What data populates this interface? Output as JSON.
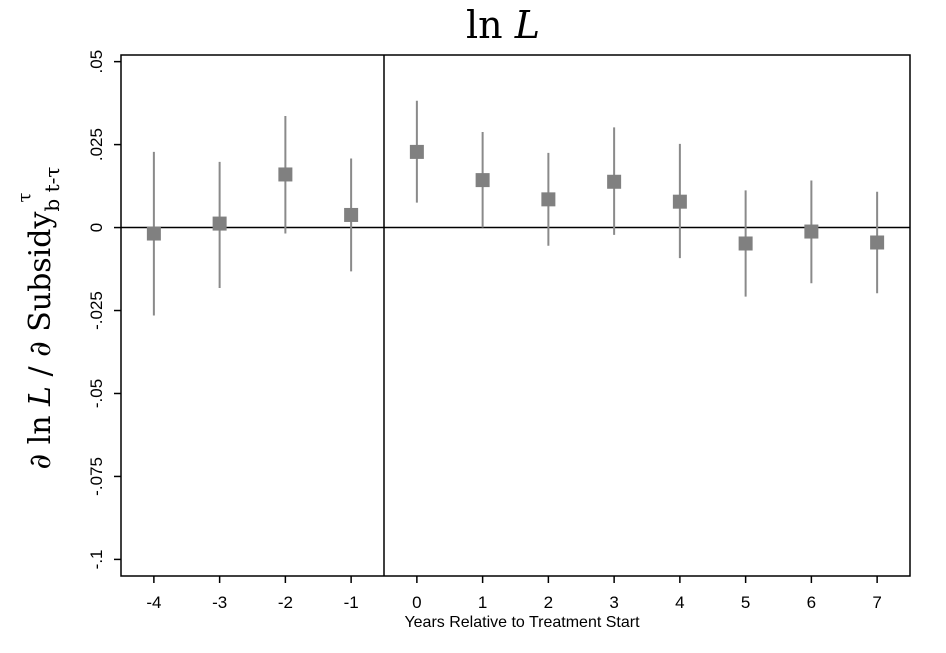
{
  "chart_data": {
    "type": "scatter",
    "title": "ln L",
    "title_main": "ln ",
    "title_var": "L",
    "xlabel": "Years Relative to Treatment Start",
    "ylabel": "∂ ln L  /  ∂ Subsidy",
    "ylabel_main": "∂ ln ",
    "ylabel_var": "L",
    "ylabel_sep": "  /  ∂ Subsidy",
    "ylabel_sub": "b t-τ",
    "ylabel_sup": "τ",
    "xlim": [
      -4.5,
      7.5
    ],
    "ylim": [
      -0.105,
      0.052
    ],
    "x_ticks": [
      -4,
      -3,
      -2,
      -1,
      0,
      1,
      2,
      3,
      4,
      5,
      6,
      7
    ],
    "x_tick_labels": [
      "-4",
      "-3",
      "-2",
      "-1",
      "0",
      "1",
      "2",
      "3",
      "4",
      "5",
      "6",
      "7"
    ],
    "y_ticks": [
      0.05,
      0.025,
      0,
      -0.025,
      -0.05,
      -0.075,
      -0.1
    ],
    "y_tick_labels": [
      ".05",
      ".025",
      "0",
      "-.025",
      "-.05",
      "-.075",
      "-.1"
    ],
    "reference_lines": {
      "vertical_x": -0.5,
      "horizontal_y": 0
    },
    "grid": false,
    "marker_color": "#808080",
    "errorbar_color": "#8a8a8a",
    "points": [
      {
        "x": -4,
        "y": -0.0018,
        "ci_low": -0.0265,
        "ci_high": 0.0228
      },
      {
        "x": -3,
        "y": 0.0012,
        "ci_low": -0.0182,
        "ci_high": 0.0198
      },
      {
        "x": -2,
        "y": 0.016,
        "ci_low": -0.0018,
        "ci_high": 0.0336
      },
      {
        "x": -1,
        "y": 0.0038,
        "ci_low": -0.0132,
        "ci_high": 0.0208
      },
      {
        "x": 0,
        "y": 0.0228,
        "ci_low": 0.0075,
        "ci_high": 0.0382
      },
      {
        "x": 1,
        "y": 0.0143,
        "ci_low": 0.0,
        "ci_high": 0.0288
      },
      {
        "x": 2,
        "y": 0.0085,
        "ci_low": -0.0055,
        "ci_high": 0.0225
      },
      {
        "x": 3,
        "y": 0.0138,
        "ci_low": -0.0022,
        "ci_high": 0.0302
      },
      {
        "x": 4,
        "y": 0.0078,
        "ci_low": -0.0092,
        "ci_high": 0.0252
      },
      {
        "x": 5,
        "y": -0.0048,
        "ci_low": -0.0208,
        "ci_high": 0.0112
      },
      {
        "x": 6,
        "y": -0.0012,
        "ci_low": -0.0168,
        "ci_high": 0.0142
      },
      {
        "x": 7,
        "y": -0.0045,
        "ci_low": -0.0198,
        "ci_high": 0.0108
      }
    ]
  }
}
